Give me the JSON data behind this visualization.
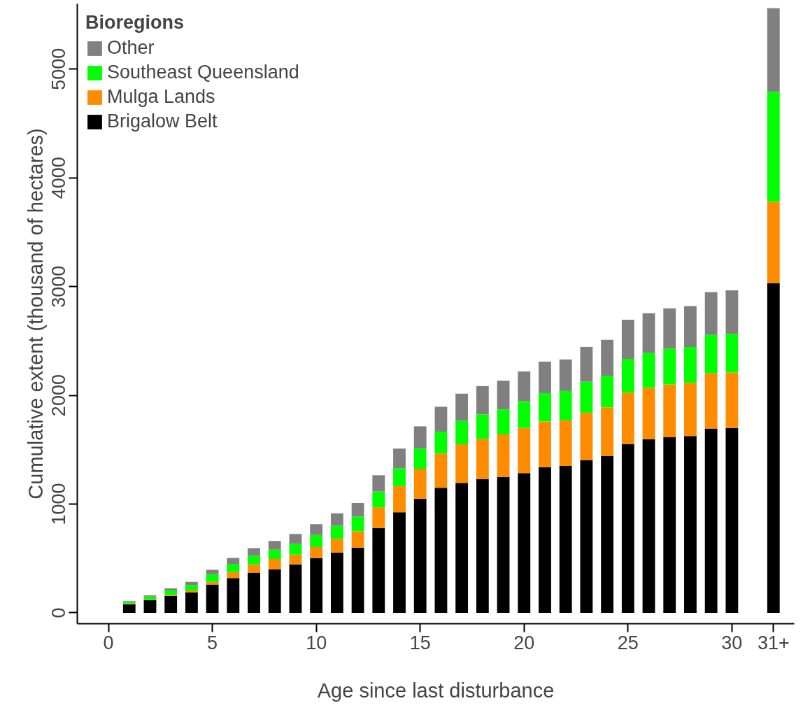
{
  "chart_data": {
    "type": "bar",
    "stacked": true,
    "xlabel": "Age since last disturbance",
    "ylabel": "Cumulative extent (thousand of hectares)",
    "legend_title": "Bioregions",
    "x": [
      1,
      2,
      3,
      4,
      5,
      6,
      7,
      8,
      9,
      10,
      11,
      12,
      13,
      14,
      15,
      16,
      17,
      18,
      19,
      20,
      21,
      22,
      23,
      24,
      25,
      26,
      27,
      28,
      29,
      30,
      32
    ],
    "series": [
      {
        "name": "Brigalow Belt",
        "color": "#000000",
        "values": [
          80,
          115,
          155,
          190,
          260,
          320,
          370,
          400,
          445,
          505,
          555,
          600,
          780,
          925,
          1050,
          1150,
          1195,
          1230,
          1250,
          1285,
          1340,
          1350,
          1405,
          1440,
          1550,
          1595,
          1615,
          1625,
          1695,
          1700,
          3030
        ]
      },
      {
        "name": "Mulga Lands",
        "color": "#ff8c00",
        "values": [
          5,
          5,
          10,
          15,
          25,
          55,
          75,
          95,
          90,
          100,
          125,
          150,
          190,
          240,
          275,
          315,
          355,
          370,
          390,
          415,
          420,
          420,
          435,
          450,
          475,
          475,
          485,
          490,
          510,
          510,
          750
        ]
      },
      {
        "name": "Southeast Queensland",
        "color": "#00ff00",
        "values": [
          15,
          30,
          40,
          50,
          70,
          75,
          80,
          85,
          100,
          110,
          120,
          135,
          145,
          165,
          185,
          200,
          215,
          225,
          230,
          245,
          260,
          270,
          285,
          290,
          310,
          320,
          330,
          330,
          350,
          355,
          1010
        ]
      },
      {
        "name": "Other",
        "color": "#808080",
        "values": [
          7,
          10,
          20,
          30,
          40,
          55,
          70,
          80,
          90,
          100,
          115,
          125,
          150,
          180,
          205,
          230,
          250,
          260,
          265,
          275,
          290,
          290,
          320,
          330,
          360,
          365,
          370,
          375,
          395,
          400,
          770
        ]
      }
    ],
    "xlim": [
      -1.5,
      33
    ],
    "ylim": [
      -100,
      5600
    ],
    "xticks": [
      0,
      5,
      10,
      15,
      20,
      25,
      30,
      {
        "value": 32,
        "label": "31+"
      }
    ],
    "yticks": [
      0,
      1000,
      2000,
      3000,
      4000,
      5000
    ],
    "legend": "top left",
    "grid": false
  }
}
